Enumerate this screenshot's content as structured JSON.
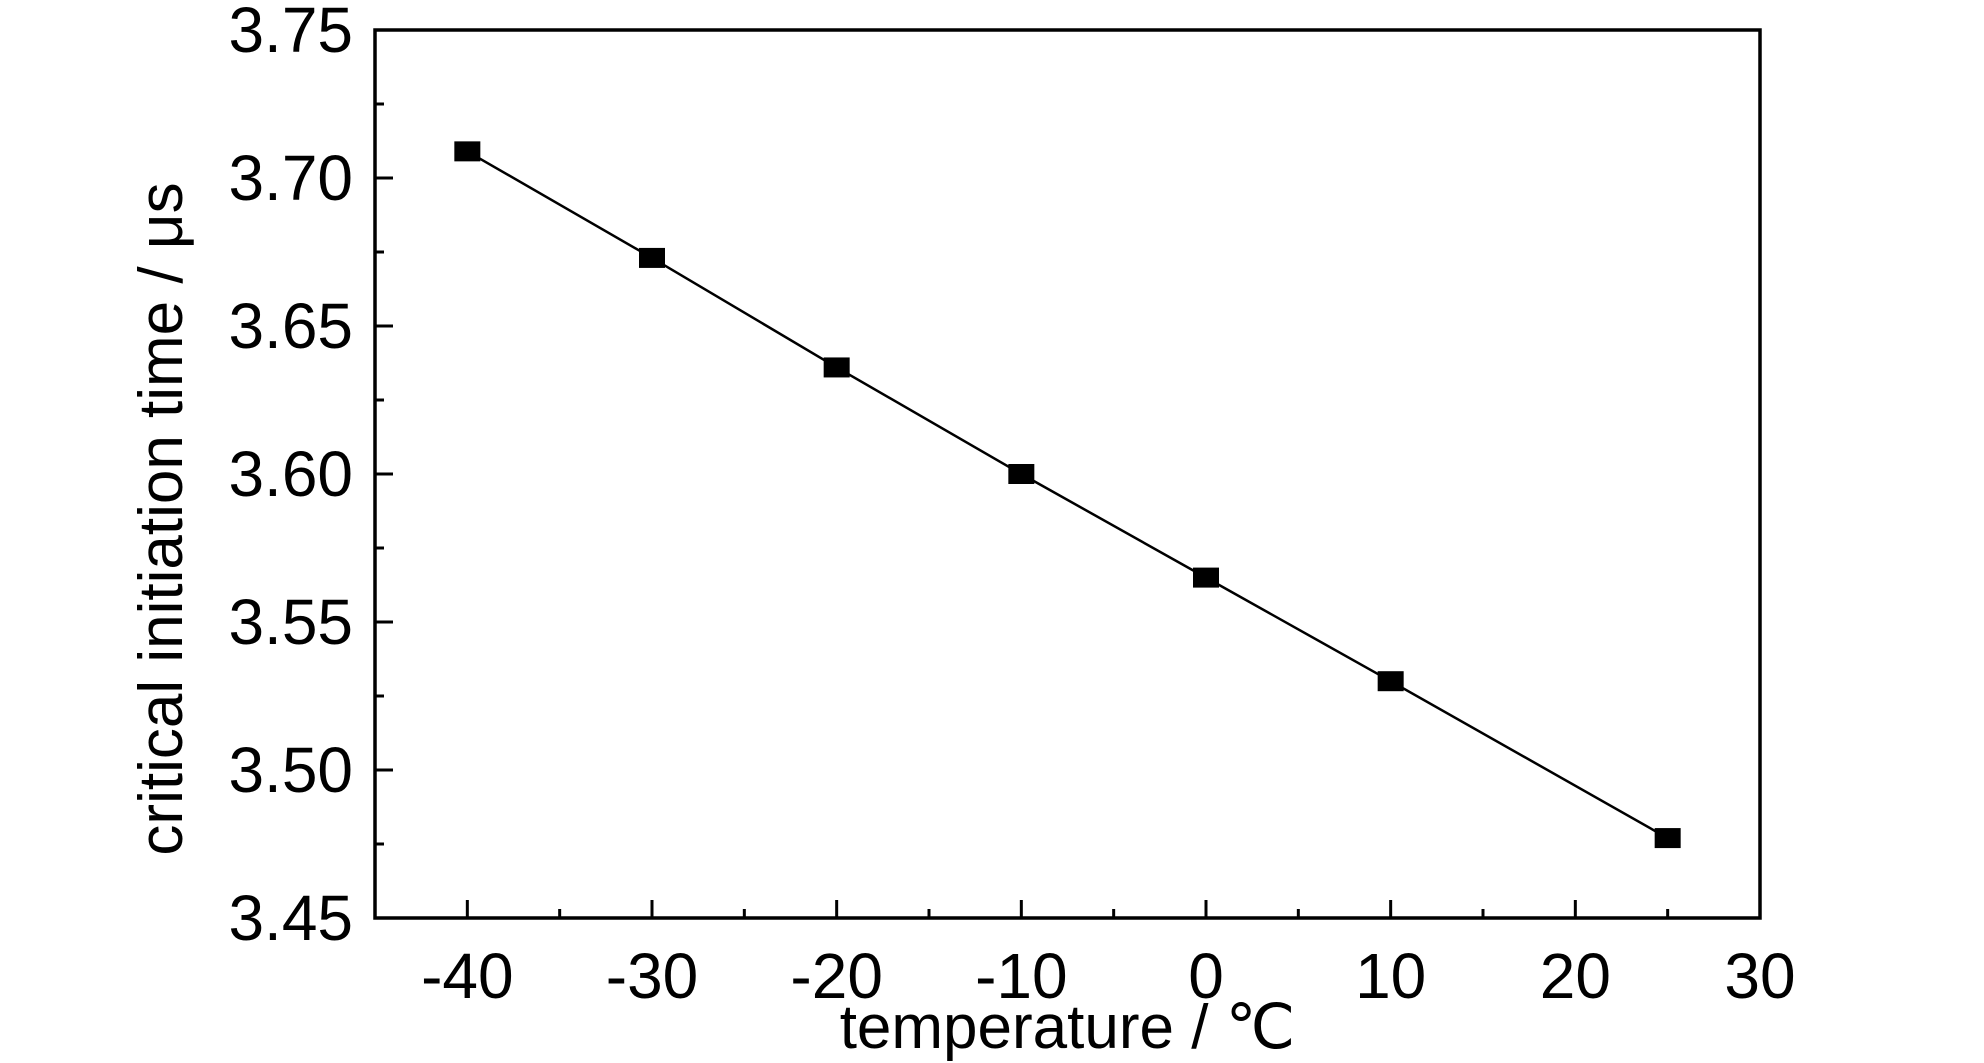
{
  "chart_data": {
    "type": "line",
    "title": "",
    "xlabel": "temperature / ℃",
    "ylabel": "critical initiation time / μs",
    "xlim": [
      -45,
      30
    ],
    "ylim": [
      3.45,
      3.75
    ],
    "x_ticks": [
      -40,
      -30,
      -20,
      -10,
      0,
      10,
      20,
      30
    ],
    "x_tick_labels": [
      "-40",
      "-30",
      "-20",
      "-10",
      "0",
      "10",
      "20",
      "30"
    ],
    "y_ticks": [
      3.45,
      3.5,
      3.55,
      3.6,
      3.65,
      3.7,
      3.75
    ],
    "y_tick_labels": [
      "3.45",
      "3.50",
      "3.55",
      "3.60",
      "3.65",
      "3.70",
      "3.75"
    ],
    "grid": false,
    "series": [
      {
        "marker": "square",
        "color": "#000000",
        "x": [
          -40,
          -30,
          -20,
          -10,
          0,
          10,
          25
        ],
        "y": [
          3.709,
          3.673,
          3.636,
          3.6,
          3.565,
          3.53,
          3.477
        ]
      }
    ]
  }
}
